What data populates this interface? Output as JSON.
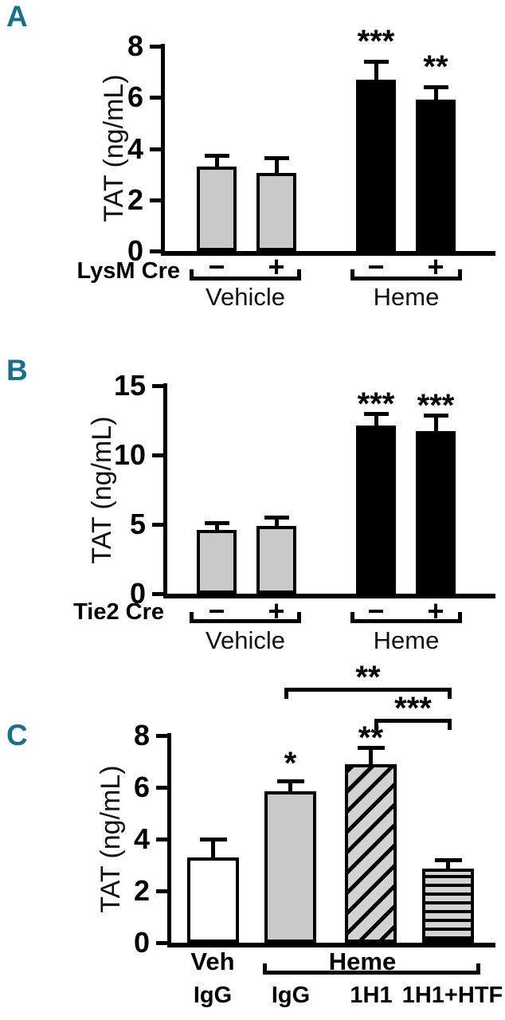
{
  "colors": {
    "panel_label_teal": "#17708f",
    "bar_light_gray": "#c9c9c9",
    "bar_black": "#000000",
    "bar_white": "#ffffff",
    "hatch_gray": "#d2d2d2",
    "axis": "#000000"
  },
  "chart_data": [
    {
      "panel": "A",
      "type": "bar",
      "ylabel": "TAT (ng/mL)",
      "row_label": "LysM Cre",
      "ylim": [
        0,
        8
      ],
      "yticks": [
        0,
        2,
        4,
        6,
        8
      ],
      "grid": false,
      "categories": [
        "Vehicle LysM Cre −",
        "Vehicle LysM Cre +",
        "Heme LysM Cre −",
        "Heme LysM Cre +"
      ],
      "cre_labels": [
        "−",
        "+",
        "−",
        "+"
      ],
      "group_labels": [
        "Vehicle",
        "Heme"
      ],
      "values": [
        3.3,
        3.05,
        6.7,
        5.9
      ],
      "errors": [
        0.45,
        0.6,
        0.7,
        0.5
      ],
      "significance": [
        "",
        "",
        "***",
        "**"
      ],
      "bar_fills": [
        "lightgray",
        "lightgray",
        "black",
        "black"
      ]
    },
    {
      "panel": "B",
      "type": "bar",
      "ylabel": "TAT (ng/mL)",
      "row_label": "Tie2 Cre",
      "ylim": [
        0,
        15
      ],
      "yticks": [
        0,
        5,
        10,
        15
      ],
      "grid": false,
      "categories": [
        "Vehicle Tie2 Cre −",
        "Vehicle Tie2 Cre +",
        "Heme Tie2 Cre −",
        "Heme Tie2 Cre +"
      ],
      "cre_labels": [
        "−",
        "+",
        "−",
        "+"
      ],
      "group_labels": [
        "Vehicle",
        "Heme"
      ],
      "values": [
        4.6,
        4.9,
        12.1,
        11.7
      ],
      "errors": [
        0.5,
        0.6,
        0.9,
        1.2
      ],
      "significance": [
        "",
        "",
        "***",
        "***"
      ],
      "bar_fills": [
        "lightgray",
        "lightgray",
        "black",
        "black"
      ]
    },
    {
      "panel": "C",
      "type": "bar",
      "ylabel": "TAT (ng/mL)",
      "ylim": [
        0,
        8
      ],
      "yticks": [
        0,
        2,
        4,
        6,
        8
      ],
      "grid": false,
      "categories": [
        "Veh IgG",
        "Heme IgG",
        "Heme 1H1",
        "Heme 1H1+HTF"
      ],
      "condition_labels": [
        "Veh",
        "Heme"
      ],
      "treatment_labels": [
        "IgG",
        "IgG",
        "1H1",
        "1H1+HTF"
      ],
      "values": [
        3.3,
        5.85,
        6.9,
        2.85
      ],
      "errors": [
        0.7,
        0.4,
        0.65,
        0.35
      ],
      "significance": [
        "",
        "*",
        "**",
        ""
      ],
      "bar_fills": [
        "white",
        "lightgray",
        "diagonal-hatch",
        "horizontal-stripes"
      ],
      "brackets": [
        {
          "from_bar_index": 1,
          "to_bar_index": 3,
          "label": "**"
        },
        {
          "from_bar_index": 2,
          "to_bar_index": 3,
          "label": "***"
        }
      ]
    }
  ]
}
